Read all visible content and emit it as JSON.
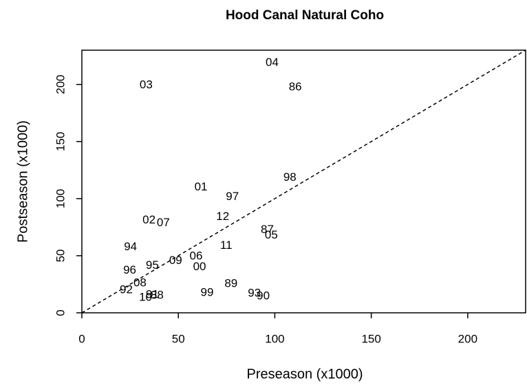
{
  "chart_data": {
    "type": "scatter",
    "title": "Hood Canal Natural Coho",
    "xlabel": "Preseason (x1000)",
    "ylabel": "Postseason (x1000)",
    "point_labels": [
      "04",
      "86",
      "03",
      "98",
      "01",
      "97",
      "12",
      "02",
      "07",
      "87",
      "05",
      "11",
      "94",
      "06",
      "09",
      "95",
      "00",
      "96",
      "08",
      "89",
      "92",
      "99",
      "93",
      "90",
      "88",
      "10",
      "91"
    ],
    "x": [
      98.6,
      110.6,
      33.3,
      107.8,
      61.7,
      78,
      73,
      34.8,
      42.2,
      96.1,
      98.2,
      74.8,
      25.2,
      59.2,
      48.6,
      36.5,
      61,
      24.8,
      30.1,
      77.3,
      23,
      64.9,
      89.4,
      94,
      39,
      33,
      36.5
    ],
    "values": [
      219,
      197.6,
      199.4,
      118.4,
      110,
      101.5,
      84,
      81,
      78.5,
      72.5,
      67.7,
      58.6,
      57.4,
      49.5,
      45.3,
      41.1,
      39.9,
      36.9,
      26,
      25.4,
      20,
      17.5,
      16.9,
      14.5,
      15.1,
      13.3,
      15.7
    ],
    "xlim": [
      0,
      230
    ],
    "ylim": [
      0,
      230
    ],
    "xticks": [
      0,
      50,
      100,
      150,
      200
    ],
    "yticks": [
      0,
      50,
      100,
      150,
      200
    ],
    "color": "#000000"
  }
}
